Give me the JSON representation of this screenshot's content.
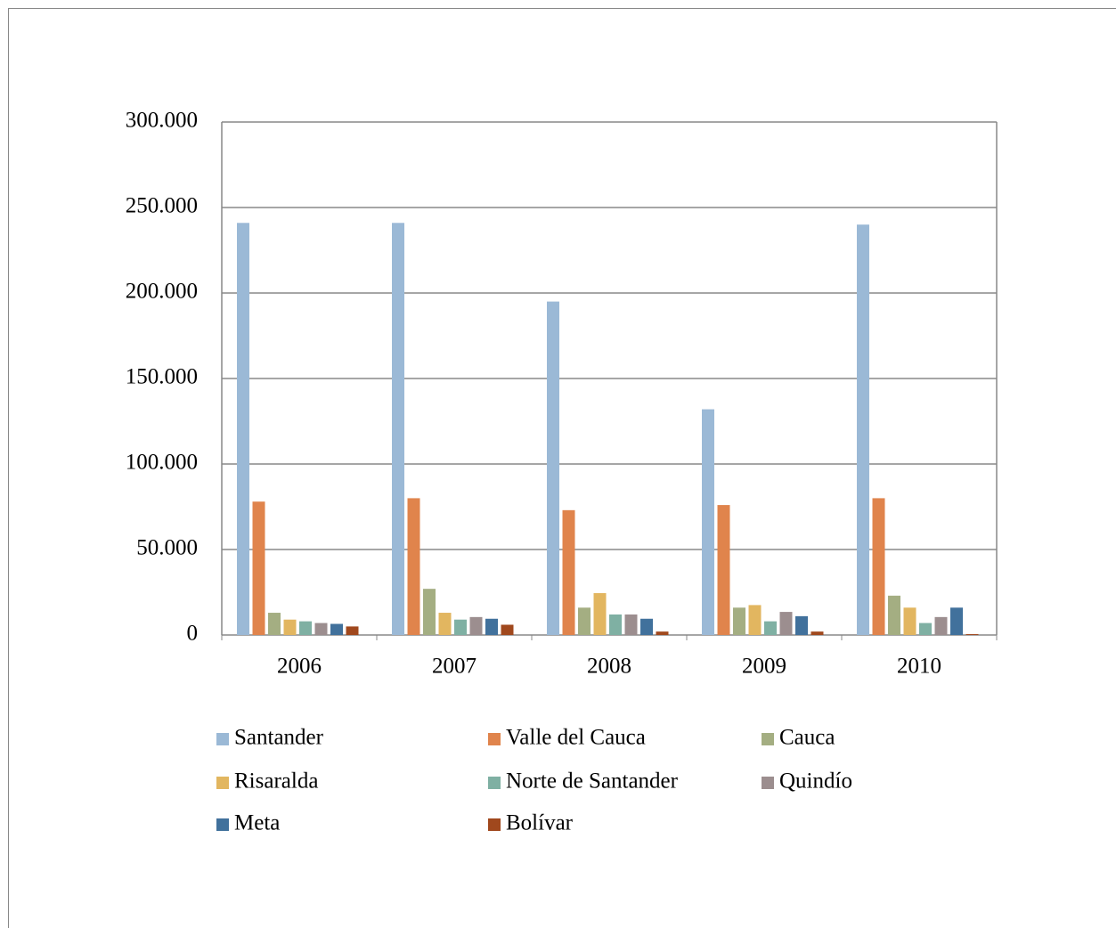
{
  "chart_data": {
    "type": "bar",
    "categories": [
      "2006",
      "2007",
      "2008",
      "2009",
      "2010"
    ],
    "series": [
      {
        "name": "Santander",
        "color": "#9bb9d6",
        "values": [
          241000,
          241000,
          195000,
          132000,
          240000
        ]
      },
      {
        "name": "Valle del Cauca",
        "color": "#e0844c",
        "values": [
          78000,
          80000,
          73000,
          76000,
          80000
        ]
      },
      {
        "name": "Cauca",
        "color": "#a4ae82",
        "values": [
          13000,
          27000,
          16000,
          16000,
          23000
        ]
      },
      {
        "name": "Risaralda",
        "color": "#e2b660",
        "values": [
          9000,
          13000,
          24500,
          17500,
          16000
        ]
      },
      {
        "name": "Norte de Santander",
        "color": "#7fb0a3",
        "values": [
          8000,
          9000,
          12000,
          8000,
          7000
        ]
      },
      {
        "name": "Quindío",
        "color": "#9c8e8f",
        "values": [
          7000,
          10500,
          12000,
          13500,
          10500
        ]
      },
      {
        "name": "Meta",
        "color": "#41719c",
        "values": [
          6500,
          9500,
          9500,
          11000,
          16000
        ]
      },
      {
        "name": "Bolívar",
        "color": "#a0481d",
        "values": [
          5000,
          6000,
          2000,
          2000,
          500
        ]
      }
    ],
    "ylim": [
      0,
      300000
    ],
    "yticks": [
      0,
      {
        "value": 50000,
        "label": "50.000"
      },
      {
        "value": 100000,
        "label": "100.000"
      },
      {
        "value": 150000,
        "label": "150.000"
      },
      {
        "value": 200000,
        "label": "200.000"
      },
      {
        "value": 250000,
        "label": "250.000"
      },
      {
        "value": 300000,
        "label": "300.000"
      }
    ],
    "grid": true
  }
}
